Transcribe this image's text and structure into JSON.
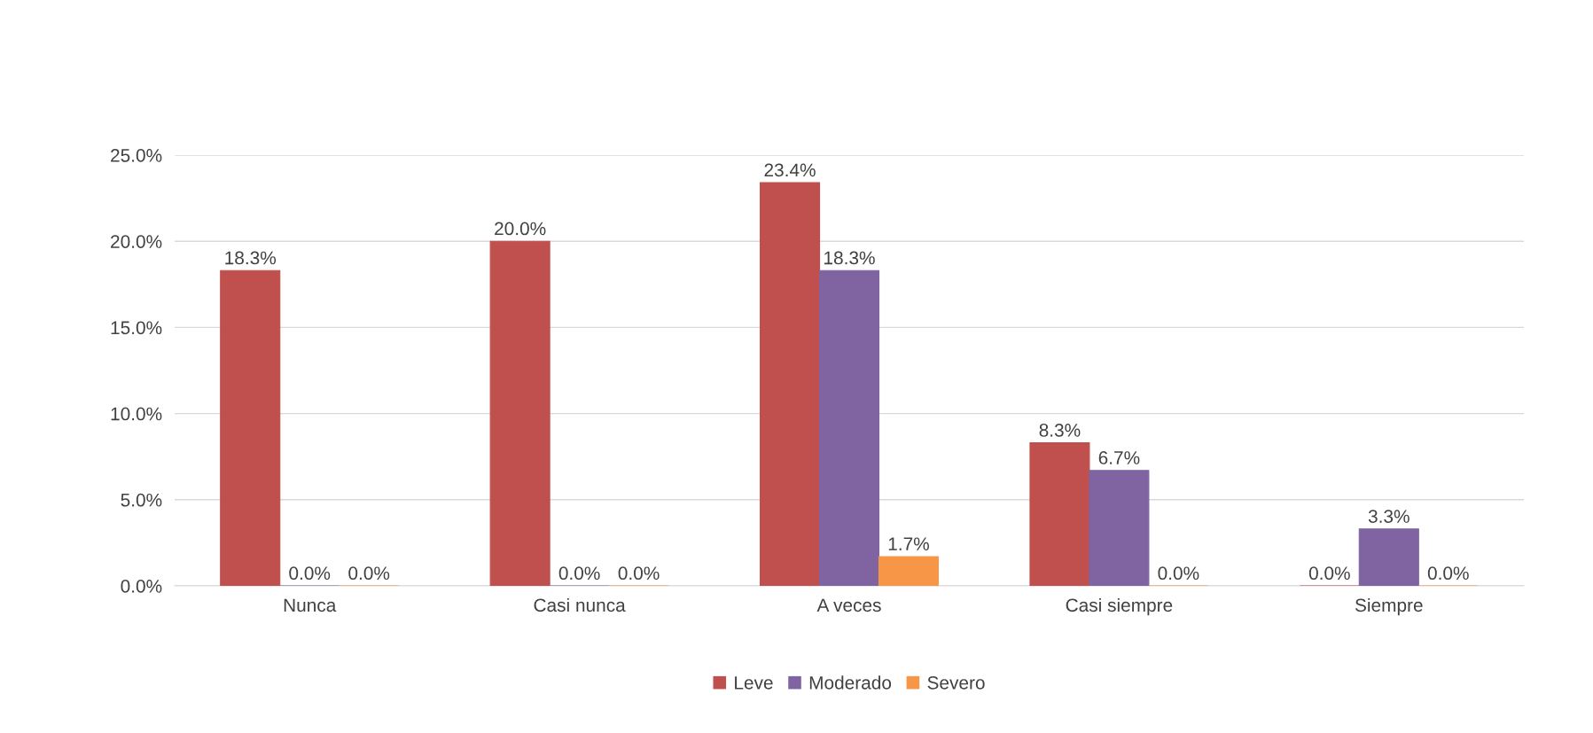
{
  "chart_data": {
    "type": "bar",
    "categories": [
      "Nunca",
      "Casi nunca",
      "A veces",
      "Casi siempre",
      "Siempre"
    ],
    "series": [
      {
        "name": "Leve",
        "color": "#c0504d",
        "values": [
          18.3,
          20.0,
          23.4,
          8.3,
          0.0
        ],
        "value_labels": [
          "18.3%",
          "20.0%",
          "23.4%",
          "8.3%",
          "0.0%"
        ]
      },
      {
        "name": "Moderado",
        "color": "#8064a2",
        "values": [
          0.0,
          0.0,
          18.3,
          6.7,
          3.3
        ],
        "value_labels": [
          "0.0%",
          "0.0%",
          "18.3%",
          "6.7%",
          "3.3%"
        ]
      },
      {
        "name": "Severo",
        "color": "#f79646",
        "values": [
          0.0,
          0.0,
          1.7,
          0.0,
          0.0
        ],
        "value_labels": [
          "0.0%",
          "0.0%",
          "1.7%",
          "0.0%",
          "0.0%"
        ]
      }
    ],
    "ylim": [
      0,
      25
    ],
    "yticks": [
      {
        "value": 0,
        "label": "0.0%"
      },
      {
        "value": 5,
        "label": "5.0%"
      },
      {
        "value": 10,
        "label": "10.0%"
      },
      {
        "value": 15,
        "label": "15.0%"
      },
      {
        "value": 20,
        "label": "20.0%"
      },
      {
        "value": 25,
        "label": "25.0%"
      }
    ],
    "grid": "y",
    "legend": "bottom"
  }
}
